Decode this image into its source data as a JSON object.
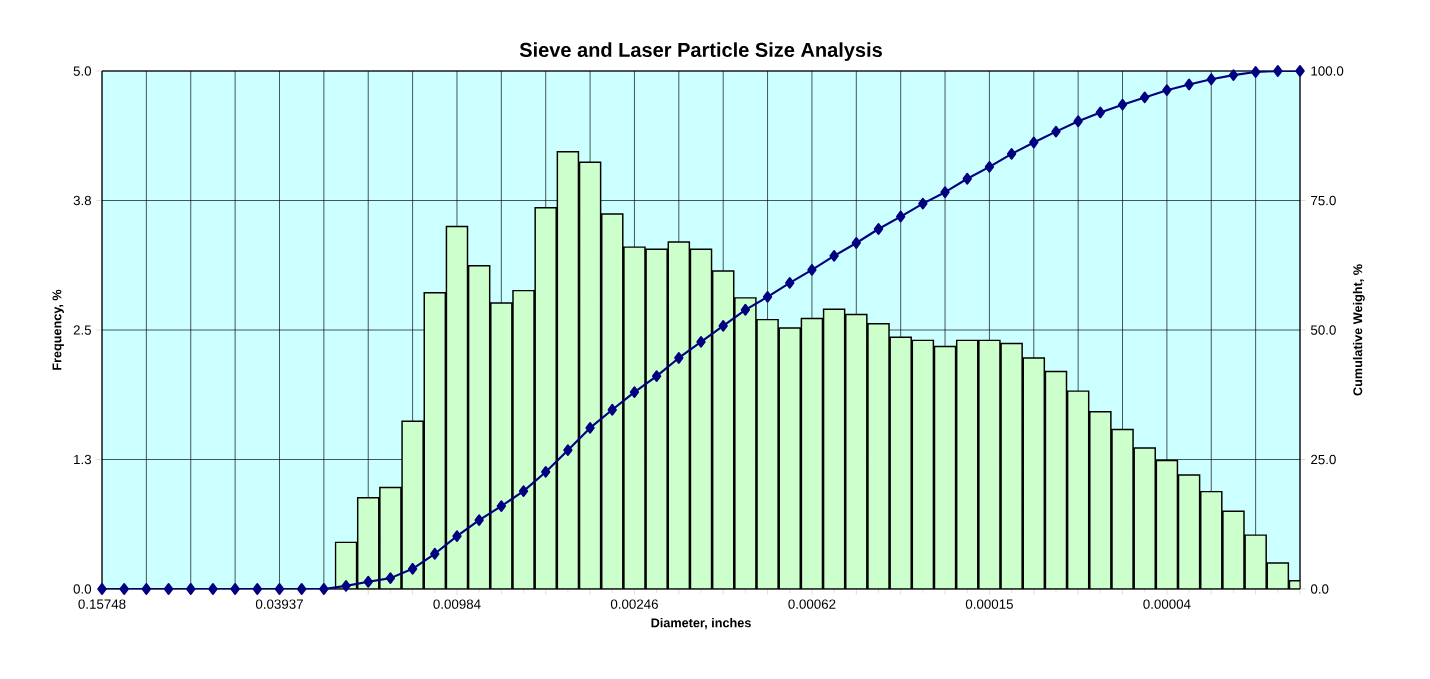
{
  "chart_data": {
    "type": "bar",
    "title": "Sieve and Laser Particle Size Analysis",
    "xlabel": "Diameter, inches",
    "ylabel": "Frequency, %",
    "y2label": "Cumulative Weight, %",
    "categories": [
      "0.15748",
      null,
      null,
      null,
      null,
      null,
      null,
      null,
      "0.03937",
      null,
      null,
      null,
      null,
      null,
      null,
      null,
      "0.00984",
      null,
      null,
      null,
      null,
      null,
      null,
      null,
      "0.00246",
      null,
      null,
      null,
      null,
      null,
      null,
      null,
      "0.00062",
      null,
      null,
      null,
      null,
      null,
      null,
      null,
      "0.00015",
      null,
      null,
      null,
      null,
      null,
      null,
      null,
      "0.00004",
      null,
      null,
      null,
      null,
      null,
      null
    ],
    "series": [
      {
        "type": "bar",
        "color": "#ccffcc",
        "values": [
          null,
          null,
          null,
          null,
          null,
          null,
          null,
          null,
          null,
          null,
          null,
          0.45,
          0.88,
          0.98,
          1.62,
          2.86,
          3.5,
          3.12,
          2.76,
          2.88,
          3.68,
          4.22,
          4.12,
          3.62,
          3.3,
          3.28,
          3.35,
          3.28,
          3.07,
          2.81,
          2.6,
          2.52,
          2.61,
          2.7,
          2.65,
          2.56,
          2.43,
          2.4,
          2.34,
          2.4,
          2.4,
          2.37,
          2.23,
          2.1,
          1.91,
          1.71,
          1.54,
          1.36,
          1.24,
          1.1,
          0.94,
          0.75,
          0.52,
          0.25,
          0.08
        ]
      },
      {
        "type": "line",
        "axis": "y2",
        "color": "#000080",
        "marker": "diamond",
        "values": [
          0,
          0,
          0,
          0,
          0,
          0,
          0,
          0,
          0,
          0,
          0,
          0.6,
          1.4,
          2.1,
          3.9,
          6.8,
          10.2,
          13.3,
          16.0,
          18.9,
          22.6,
          26.8,
          31.1,
          34.6,
          38.0,
          41.1,
          44.6,
          47.7,
          50.8,
          53.9,
          56.4,
          59.1,
          61.6,
          64.3,
          66.8,
          69.5,
          71.9,
          74.4,
          76.6,
          79.2,
          81.5,
          84.0,
          86.2,
          88.3,
          90.3,
          92.0,
          93.5,
          94.9,
          96.3,
          97.4,
          98.4,
          99.2,
          99.8,
          100,
          100
        ]
      }
    ],
    "ylim": [
      0,
      5
    ],
    "yticks": [
      {
        "value": 0,
        "label": "0.0"
      },
      {
        "value": 1.25,
        "label": "1.3"
      },
      {
        "value": 2.5,
        "label": "2.5"
      },
      {
        "value": 3.75,
        "label": "3.8"
      },
      {
        "value": 5,
        "label": "5.0"
      }
    ],
    "y2lim": [
      0,
      100
    ],
    "y2ticks": [
      {
        "value": 0,
        "label": "0.0"
      },
      {
        "value": 25,
        "label": "25.0"
      },
      {
        "value": 50,
        "label": "50.0"
      },
      {
        "value": 75,
        "label": "75.0"
      },
      {
        "value": 100,
        "label": "100.0"
      }
    ],
    "grid": true
  }
}
